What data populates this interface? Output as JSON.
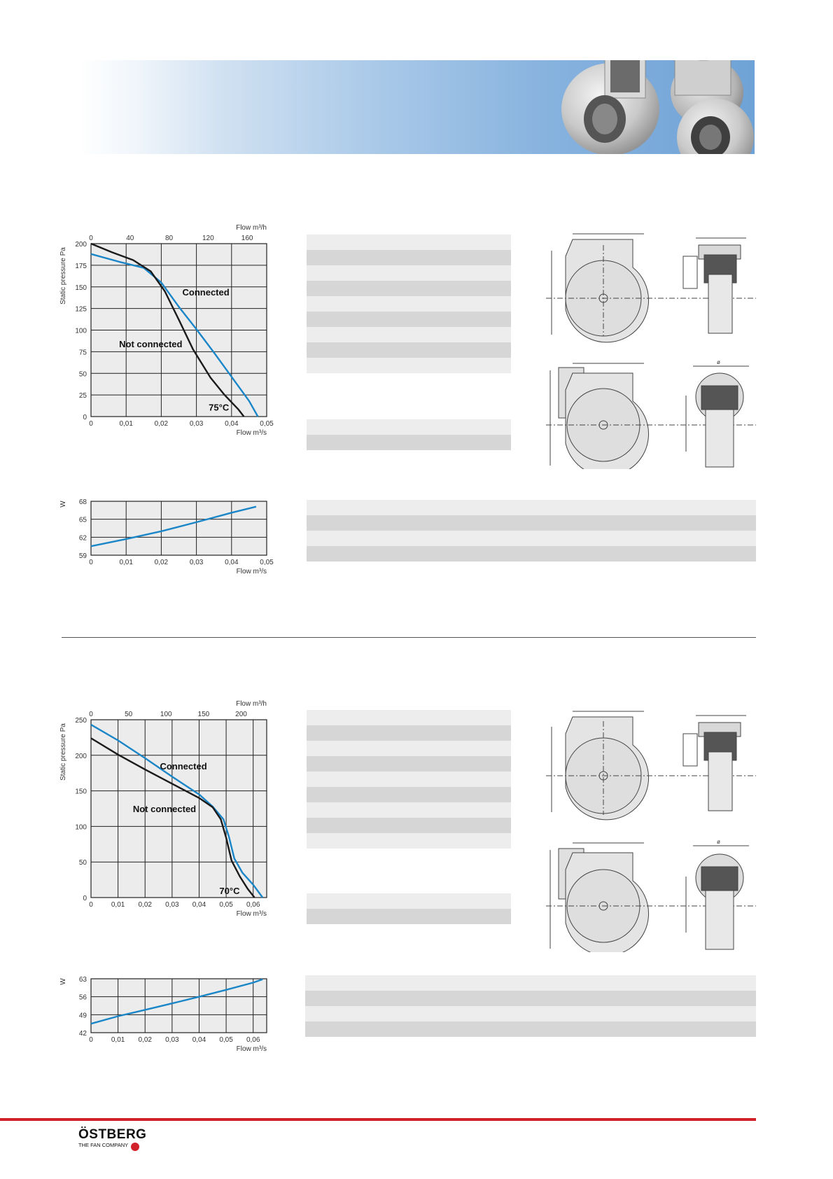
{
  "brand": {
    "name": "ÖSTBERG",
    "tagline": "THE FAN COMPANY",
    "accent": "#d3212c"
  },
  "colors": {
    "connected": "#1a86c8",
    "not_connected": "#1b1b1b",
    "grid_bg": "#ececec",
    "stripe_light": "#ededed",
    "stripe_dark": "#d6d6d6"
  },
  "dimension_labels": {
    "diameter": "ø"
  },
  "chart_data": [
    {
      "id": "fan1-pressure",
      "type": "line",
      "title": "",
      "ylabel": "Static pressure Pa",
      "xlabel": "Flow m³/s",
      "x2label": "Flow m³/h",
      "xlim": [
        0,
        0.05
      ],
      "ylim": [
        0,
        200
      ],
      "x_ticks": [
        "0",
        "0,01",
        "0,02",
        "0,03",
        "0,04",
        "0,05"
      ],
      "x2_ticks": [
        "0",
        "40",
        "80",
        "120",
        "160"
      ],
      "y_ticks": [
        "0",
        "25",
        "50",
        "75",
        "100",
        "125",
        "150",
        "175",
        "200"
      ],
      "grid": true,
      "series": [
        {
          "name": "Connected",
          "color": "#1a86c8",
          "x": [
            0,
            0.008,
            0.015,
            0.02,
            0.025,
            0.03,
            0.035,
            0.04,
            0.045,
            0.0475
          ],
          "y": [
            188,
            179,
            172,
            155,
            127,
            101,
            74,
            46,
            18,
            0
          ]
        },
        {
          "name": "Not connected",
          "color": "#1b1b1b",
          "x": [
            0,
            0.006,
            0.012,
            0.017,
            0.021,
            0.025,
            0.029,
            0.034,
            0.038,
            0.042,
            0.0435
          ],
          "y": [
            200,
            190,
            181,
            168,
            145,
            112,
            78,
            45,
            25,
            8,
            0
          ]
        }
      ],
      "annotations": [
        "Connected",
        "Not connected",
        "75°C"
      ]
    },
    {
      "id": "fan1-power",
      "type": "line",
      "title": "",
      "ylabel": "W",
      "xlabel": "Flow m³/s",
      "xlim": [
        0,
        0.05
      ],
      "ylim": [
        59,
        68
      ],
      "x_ticks": [
        "0",
        "0,01",
        "0,02",
        "0,03",
        "0,04",
        "0,05"
      ],
      "y_ticks": [
        "59",
        "62",
        "65",
        "68"
      ],
      "grid": true,
      "series": [
        {
          "name": "",
          "color": "#1a86c8",
          "x": [
            0,
            0.01,
            0.02,
            0.03,
            0.04,
            0.047
          ],
          "y": [
            60.5,
            61.7,
            63.0,
            64.5,
            66.1,
            67.1
          ]
        }
      ]
    },
    {
      "id": "fan2-pressure",
      "type": "line",
      "title": "",
      "ylabel": "Static pressure Pa",
      "xlabel": "Flow m³/s",
      "x2label": "Flow m³/h",
      "xlim": [
        0,
        0.065
      ],
      "ylim": [
        0,
        250
      ],
      "x_ticks": [
        "0",
        "0,01",
        "0,02",
        "0,03",
        "0,04",
        "0,05",
        "0,06"
      ],
      "x2_ticks": [
        "0",
        "50",
        "100",
        "150",
        "200"
      ],
      "y_ticks": [
        "0",
        "50",
        "100",
        "150",
        "200",
        "250"
      ],
      "grid": true,
      "series": [
        {
          "name": "Connected",
          "color": "#1a86c8",
          "x": [
            0,
            0.01,
            0.02,
            0.03,
            0.04,
            0.045,
            0.049,
            0.051,
            0.053,
            0.056,
            0.06,
            0.0635
          ],
          "y": [
            243,
            221,
            196,
            170,
            145,
            128,
            110,
            86,
            55,
            35,
            18,
            0
          ]
        },
        {
          "name": "Not connected",
          "color": "#1b1b1b",
          "x": [
            0,
            0.01,
            0.02,
            0.03,
            0.04,
            0.045,
            0.048,
            0.05,
            0.052,
            0.055,
            0.058,
            0.0605
          ],
          "y": [
            224,
            201,
            180,
            160,
            140,
            127,
            110,
            84,
            52,
            30,
            12,
            0
          ]
        }
      ],
      "annotations": [
        "Connected",
        "Not connected",
        "70°C"
      ]
    },
    {
      "id": "fan2-power",
      "type": "line",
      "title": "",
      "ylabel": "W",
      "xlabel": "Flow m³/s",
      "xlim": [
        0,
        0.065
      ],
      "ylim": [
        42,
        63
      ],
      "x_ticks": [
        "0",
        "0,01",
        "0,02",
        "0,03",
        "0,04",
        "0,05",
        "0,06"
      ],
      "y_ticks": [
        "42",
        "49",
        "56",
        "63"
      ],
      "grid": true,
      "series": [
        {
          "name": "",
          "color": "#1a86c8",
          "x": [
            0,
            0.01,
            0.02,
            0.03,
            0.04,
            0.05,
            0.06,
            0.0635
          ],
          "y": [
            45.5,
            48.4,
            50.9,
            53.4,
            56.0,
            58.7,
            61.5,
            62.8
          ]
        }
      ]
    }
  ]
}
